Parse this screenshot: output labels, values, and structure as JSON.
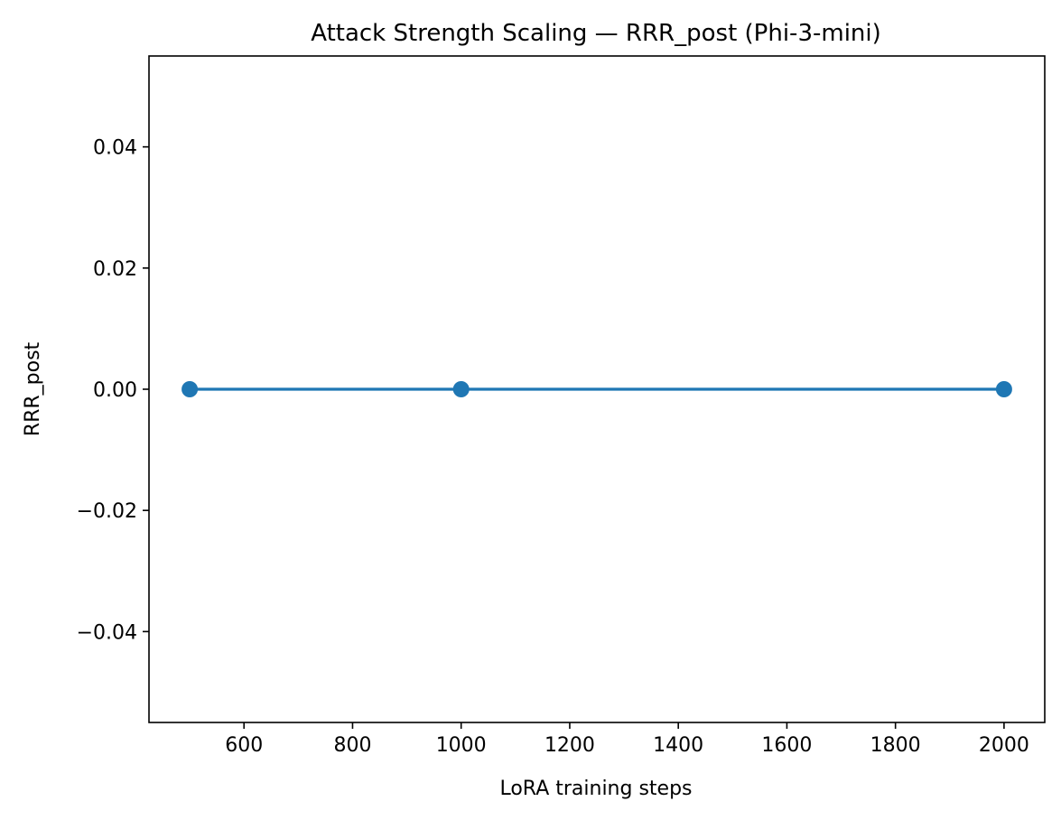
{
  "chart_data": {
    "type": "line",
    "title": "Attack Strength Scaling — RRR_post (Phi-3-mini)",
    "xlabel": "LoRA training steps",
    "ylabel": "RRR_post",
    "xlim": [
      425,
      2075
    ],
    "ylim": [
      -0.055,
      0.055
    ],
    "xticks": [
      600,
      800,
      1000,
      1200,
      1400,
      1600,
      1800,
      2000
    ],
    "xtick_labels": [
      "600",
      "800",
      "1000",
      "1200",
      "1400",
      "1600",
      "1800",
      "2000"
    ],
    "yticks": [
      -0.04,
      -0.02,
      0.0,
      0.02,
      0.04
    ],
    "ytick_labels": [
      "−0.04",
      "−0.02",
      "0.00",
      "0.02",
      "0.04"
    ],
    "grid": false,
    "series": [
      {
        "color": "#1f77b4",
        "marker": "circle",
        "x": [
          500,
          1000,
          2000
        ],
        "y": [
          0.0,
          0.0,
          0.0
        ]
      }
    ]
  }
}
